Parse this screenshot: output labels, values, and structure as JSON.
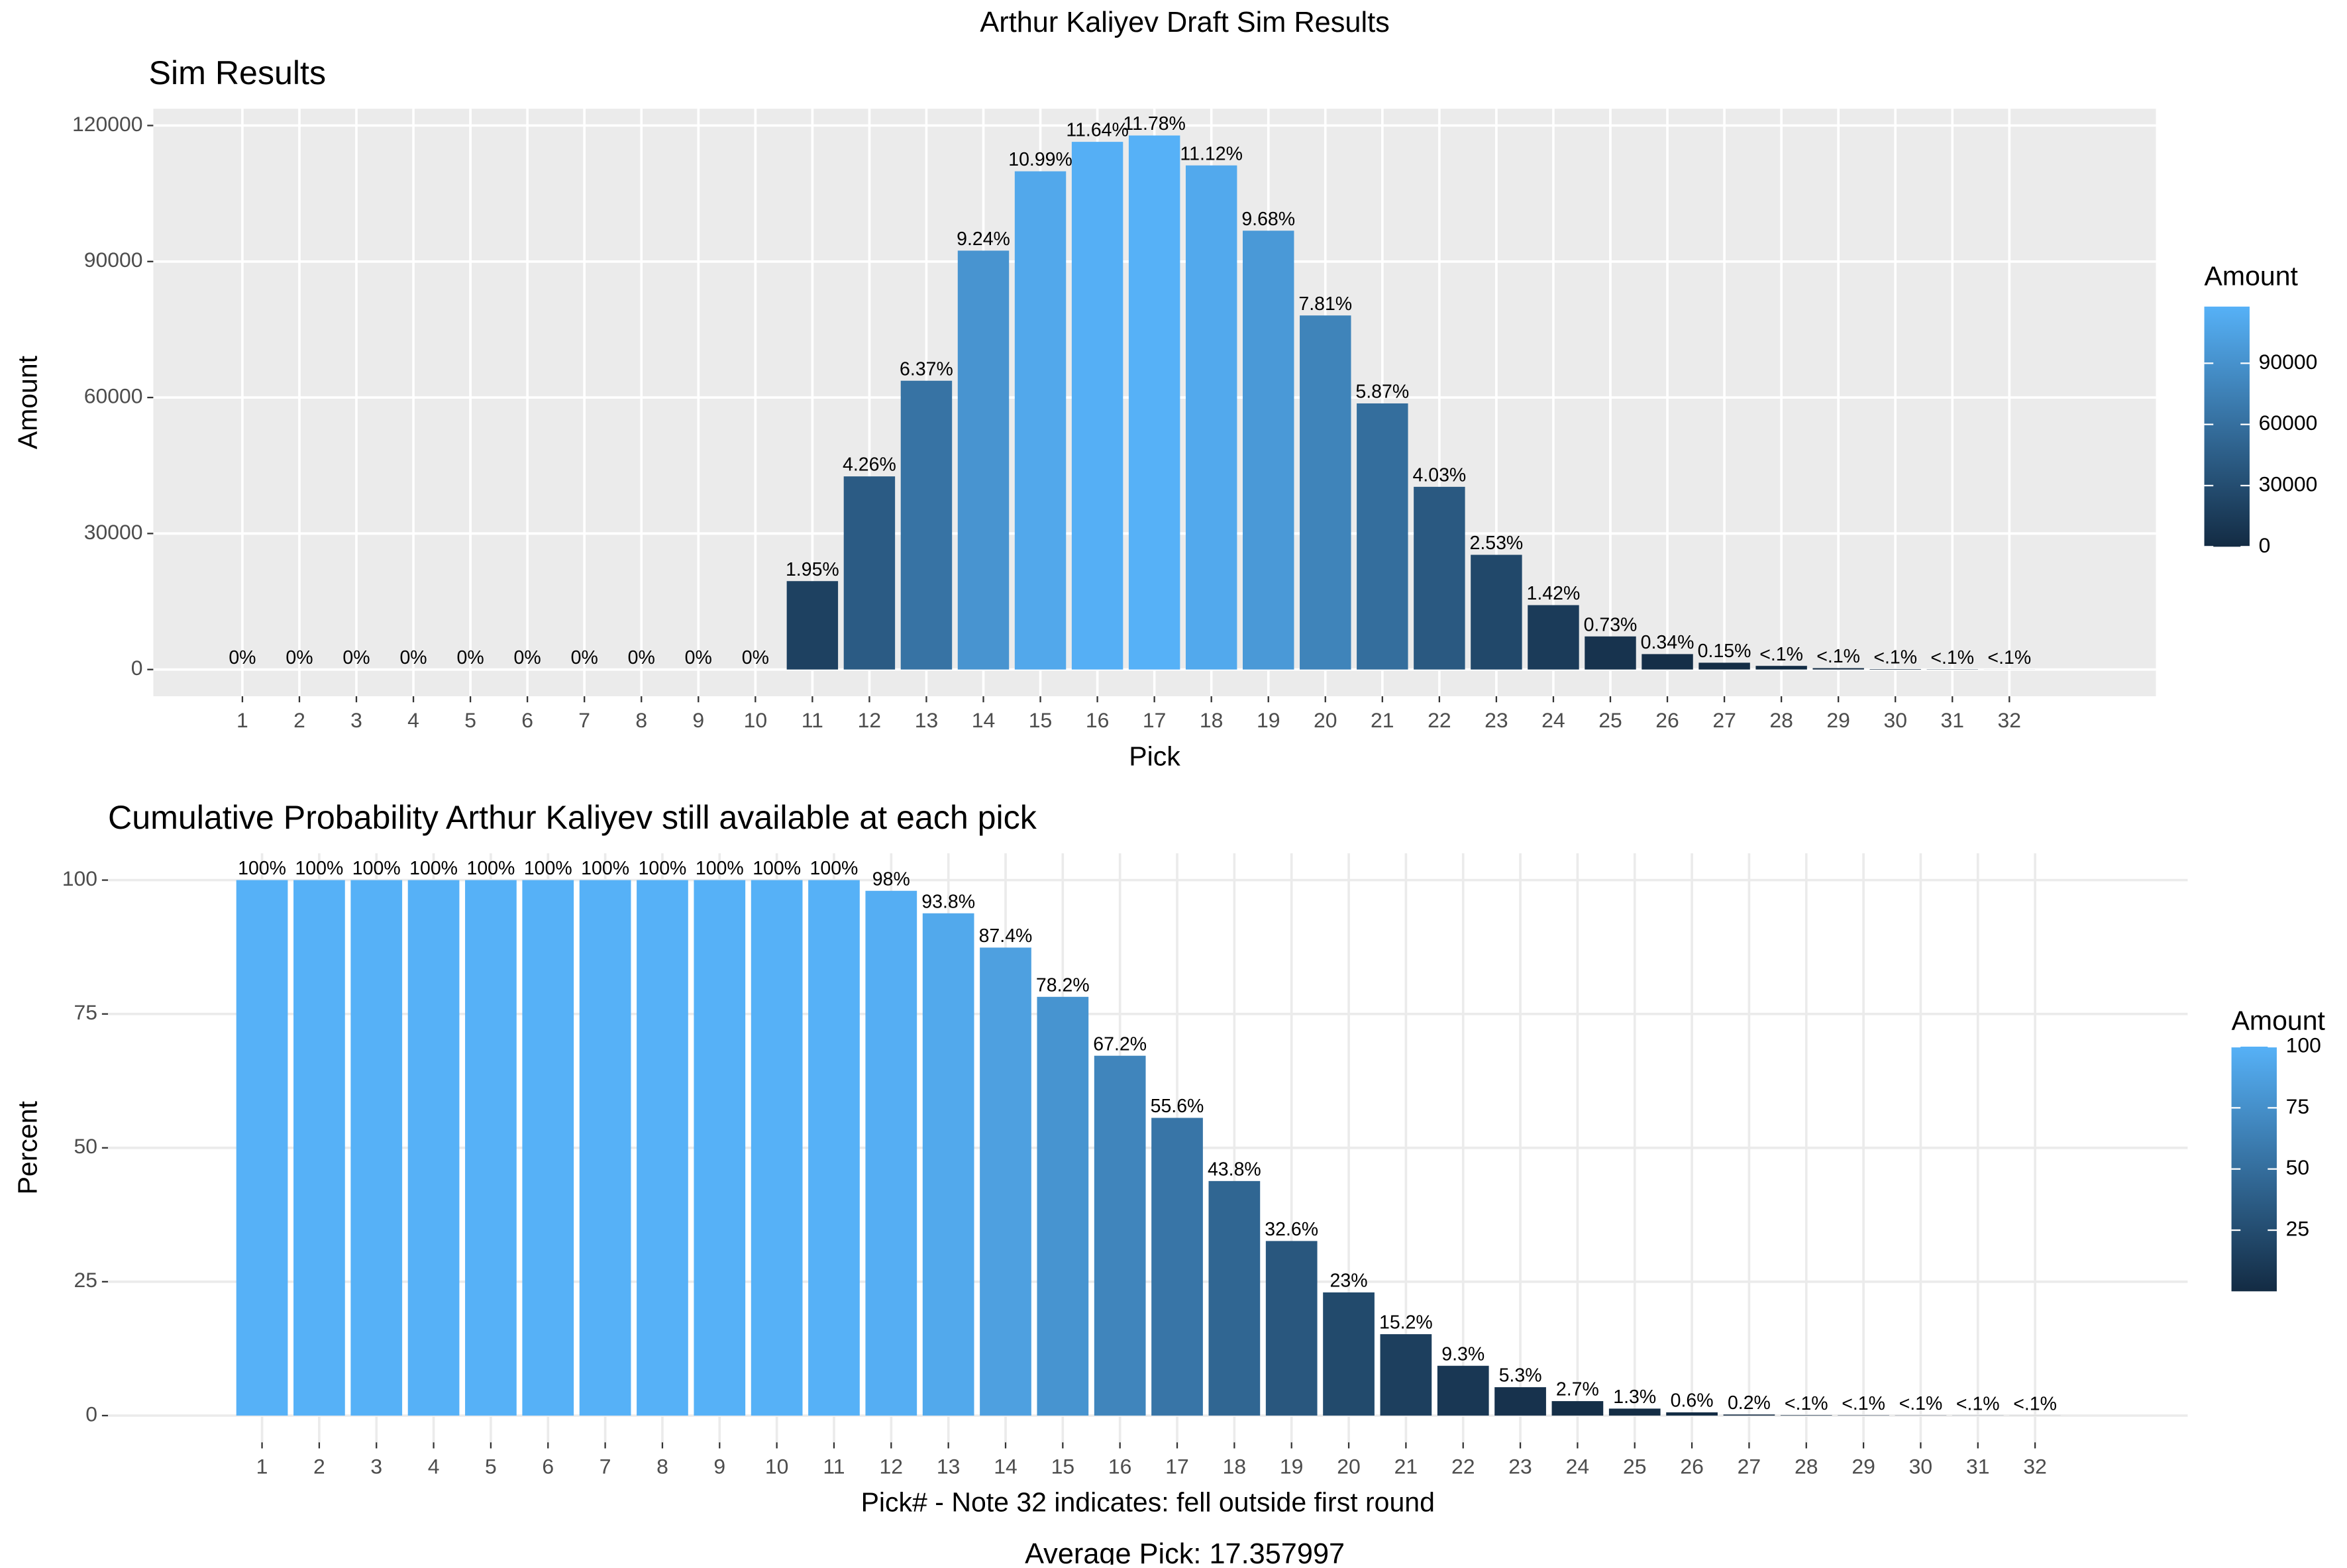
{
  "title": "Arthur Kaliyev Draft Sim Results",
  "caption": "Average Pick: 17.357997",
  "chart_data": [
    {
      "type": "bar",
      "title": "Sim Results",
      "x_label": "Pick",
      "y_label": "Amount",
      "categories": [
        "1",
        "2",
        "3",
        "4",
        "5",
        "6",
        "7",
        "8",
        "9",
        "10",
        "11",
        "12",
        "13",
        "14",
        "15",
        "16",
        "17",
        "18",
        "19",
        "20",
        "21",
        "22",
        "23",
        "24",
        "25",
        "26",
        "27",
        "28",
        "29",
        "30",
        "31",
        "32"
      ],
      "values": [
        0,
        0,
        0,
        0,
        0,
        0,
        0,
        0,
        0,
        0,
        19500,
        42600,
        63700,
        92400,
        109900,
        116400,
        117800,
        111200,
        96800,
        78100,
        58700,
        40300,
        25300,
        14200,
        7300,
        3400,
        1500,
        800,
        300,
        100,
        50,
        10
      ],
      "value_labels": [
        "0%",
        "0%",
        "0%",
        "0%",
        "0%",
        "0%",
        "0%",
        "0%",
        "0%",
        "0%",
        "1.95%",
        "4.26%",
        "6.37%",
        "9.24%",
        "10.99%",
        "11.64%",
        "11.78%",
        "11.12%",
        "9.68%",
        "7.81%",
        "5.87%",
        "4.03%",
        "2.53%",
        "1.42%",
        "0.73%",
        "0.34%",
        "0.15%",
        "<.1%",
        "<.1%",
        "<.1%",
        "<.1%",
        "<.1%"
      ],
      "ylim": [
        -5900,
        123700
      ],
      "yticks": [
        0,
        30000,
        60000,
        90000,
        120000
      ],
      "grid": true,
      "legend": "right",
      "legend_title": "Amount",
      "legend_ticks": [
        0,
        30000,
        60000,
        90000
      ],
      "color_low": "#132b43",
      "color_high": "#56b1f7"
    },
    {
      "type": "bar",
      "title": "Cumulative Probability Arthur Kaliyev still available at each pick",
      "x_label": "Pick# - Note 32 indicates: fell outside first round",
      "y_label": "Percent",
      "categories": [
        "1",
        "2",
        "3",
        "4",
        "5",
        "6",
        "7",
        "8",
        "9",
        "10",
        "11",
        "12",
        "13",
        "14",
        "15",
        "16",
        "17",
        "18",
        "19",
        "20",
        "21",
        "22",
        "23",
        "24",
        "25",
        "26",
        "27",
        "28",
        "29",
        "30",
        "31",
        "32"
      ],
      "values": [
        100,
        100,
        100,
        100,
        100,
        100,
        100,
        100,
        100,
        100,
        100,
        98,
        93.8,
        87.4,
        78.2,
        67.2,
        55.6,
        43.8,
        32.6,
        23,
        15.2,
        9.3,
        5.3,
        2.7,
        1.3,
        0.6,
        0.2,
        0.08,
        0.05,
        0.03,
        0.02,
        0.01
      ],
      "value_labels": [
        "100%",
        "100%",
        "100%",
        "100%",
        "100%",
        "100%",
        "100%",
        "100%",
        "100%",
        "100%",
        "100%",
        "98%",
        "93.8%",
        "87.4%",
        "78.2%",
        "67.2%",
        "55.6%",
        "43.8%",
        "32.6%",
        "23%",
        "15.2%",
        "9.3%",
        "5.3%",
        "2.7%",
        "1.3%",
        "0.6%",
        "0.2%",
        "<.1%",
        "<.1%",
        "<.1%",
        "<.1%",
        "<.1%"
      ],
      "ylim": [
        -5,
        105
      ],
      "yticks": [
        0,
        25,
        50,
        75,
        100
      ],
      "grid": true,
      "legend": "right",
      "legend_title": "Amount",
      "legend_ticks": [
        25,
        50,
        75,
        100
      ],
      "color_low": "#132b43",
      "color_high": "#56b1f7"
    }
  ]
}
